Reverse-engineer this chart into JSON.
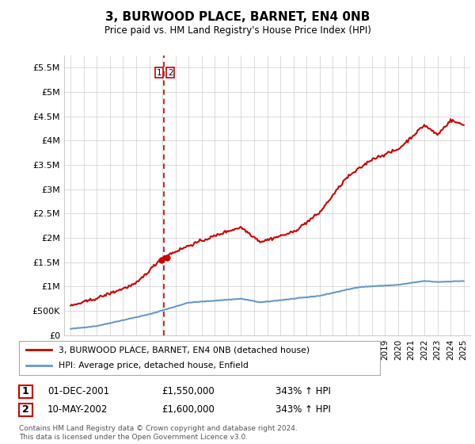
{
  "title": "3, BURWOOD PLACE, BARNET, EN4 0NB",
  "subtitle": "Price paid vs. HM Land Registry's House Price Index (HPI)",
  "legend_label_red": "3, BURWOOD PLACE, BARNET, EN4 0NB (detached house)",
  "legend_label_blue": "HPI: Average price, detached house, Enfield",
  "table_row1": [
    "1",
    "01-DEC-2001",
    "£1,550,000",
    "343% ↑ HPI"
  ],
  "table_row2": [
    "2",
    "10-MAY-2002",
    "£1,600,000",
    "343% ↑ HPI"
  ],
  "footer": "Contains HM Land Registry data © Crown copyright and database right 2024.\nThis data is licensed under the Open Government Licence v3.0.",
  "ylim": [
    0,
    5750000
  ],
  "yticks": [
    0,
    500000,
    1000000,
    1500000,
    2000000,
    2500000,
    3000000,
    3500000,
    4000000,
    4500000,
    5000000,
    5500000
  ],
  "ytick_labels": [
    "£0",
    "£500K",
    "£1M",
    "£1.5M",
    "£2M",
    "£2.5M",
    "£3M",
    "£3.5M",
    "£4M",
    "£4.5M",
    "£5M",
    "£5.5M"
  ],
  "red_color": "#cc0000",
  "blue_color": "#6699cc",
  "marker1_x": 2001.92,
  "marker1_y": 1550000,
  "marker2_x": 2002.36,
  "marker2_y": 1600000,
  "vline_x": 2002.1,
  "grid_color": "#cccccc",
  "background_color": "#ffffff",
  "plot_bg_color": "#ffffff",
  "xlim_start": 1994.5,
  "xlim_end": 2025.5
}
